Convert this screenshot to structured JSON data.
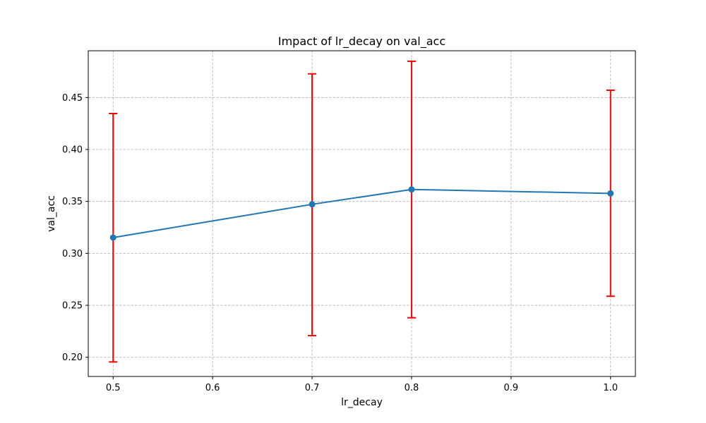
{
  "chart_data": {
    "type": "line",
    "title": "Impact of lr_decay on val_acc",
    "xlabel": "lr_decay",
    "ylabel": "val_acc",
    "x": [
      0.5,
      0.7,
      0.8,
      1.0
    ],
    "series": [
      {
        "values": [
          0.3152,
          0.3472,
          0.3615,
          0.3577
        ],
        "error_low": [
          0.1955,
          0.2208,
          0.238,
          0.2587
        ],
        "error_high": [
          0.4346,
          0.4728,
          0.4849,
          0.457
        ]
      }
    ],
    "xlim": [
      0.475,
      1.025
    ],
    "ylim": [
      0.1815,
      0.495
    ],
    "xticks": [
      0.5,
      0.6,
      0.7,
      0.8,
      0.9,
      1.0
    ],
    "xtick_labels": [
      "0.5",
      "0.6",
      "0.7",
      "0.8",
      "0.9",
      "1.0"
    ],
    "yticks": [
      0.2,
      0.25,
      0.3,
      0.35,
      0.4,
      0.45
    ],
    "ytick_labels": [
      "0.20",
      "0.25",
      "0.30",
      "0.35",
      "0.40",
      "0.45"
    ],
    "grid": true,
    "line_color": "#1f77b4",
    "error_color": "#ff0000",
    "grid_color": "#b0b0b0"
  }
}
